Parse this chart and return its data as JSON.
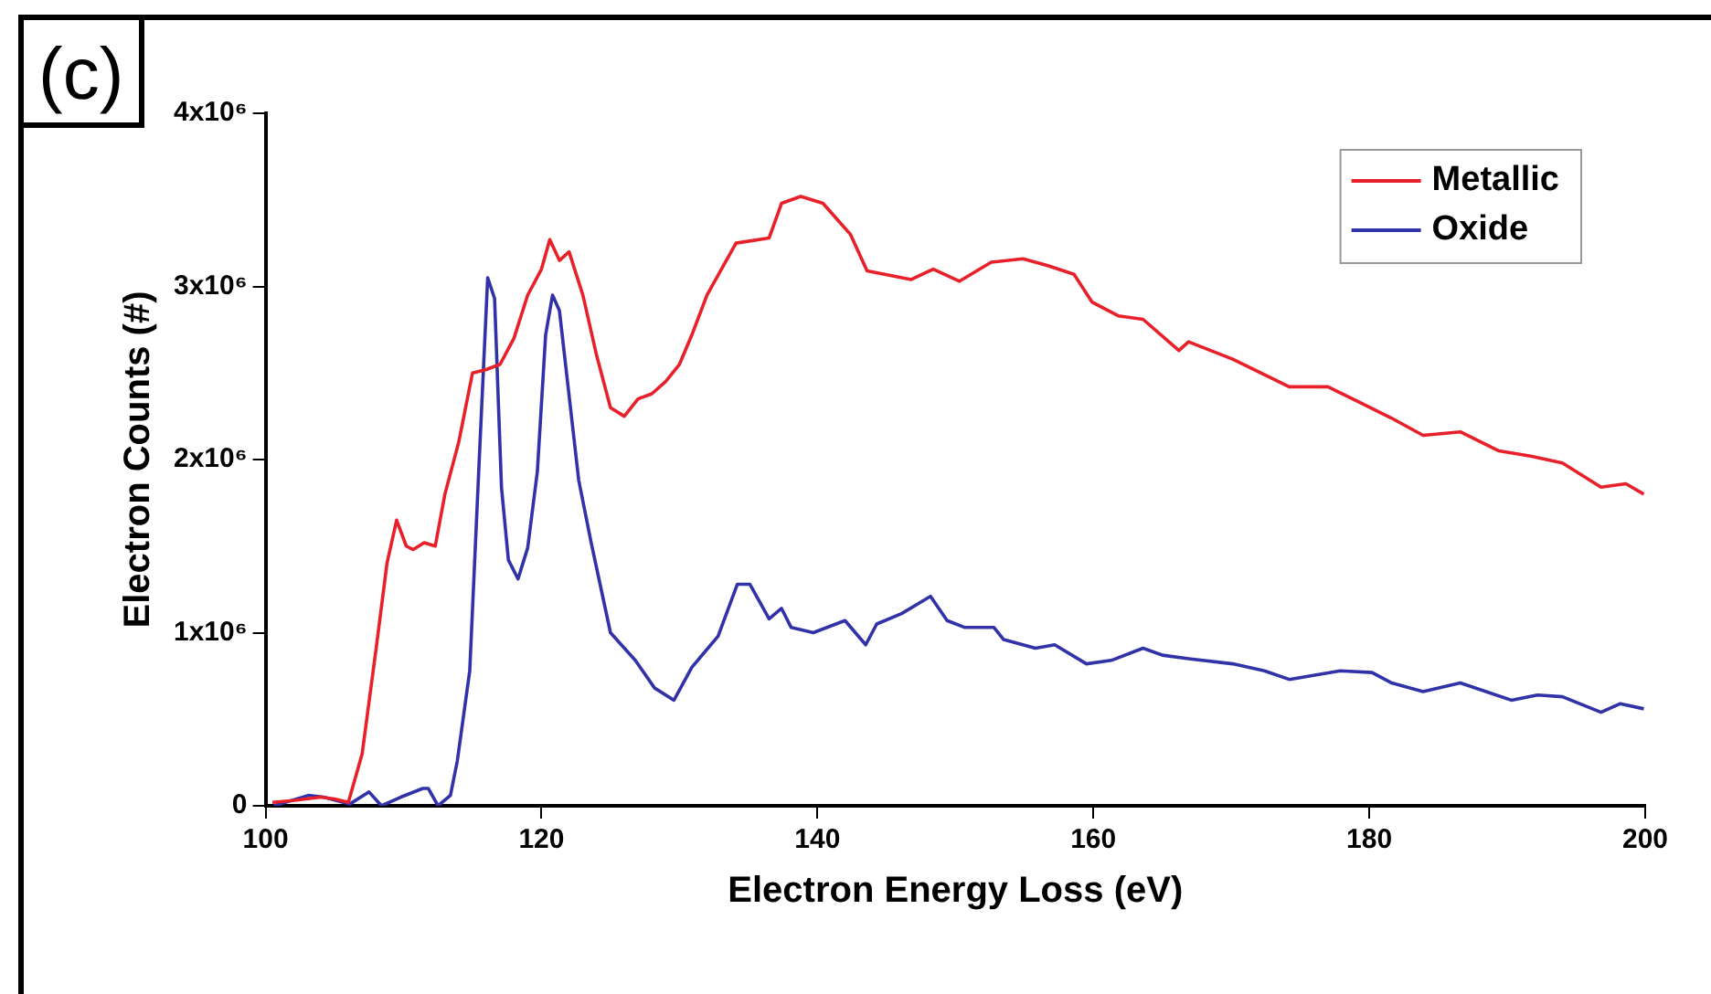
{
  "chart_data": {
    "type": "line",
    "xlabel": "Electron Energy Loss (eV)",
    "ylabel": "Electron Counts (#)",
    "annotations": [
      "(c)"
    ],
    "xlim": [
      100,
      200
    ],
    "xticks": [
      100,
      120,
      140,
      160,
      180,
      200
    ],
    "ylim": [
      0,
      4000000
    ],
    "yticks": [
      {
        "value": 0,
        "label": "0"
      },
      {
        "value": 1000000,
        "label": "1x10⁶"
      },
      {
        "value": 2000000,
        "label": "2x10⁶"
      },
      {
        "value": 3000000,
        "label": "3x10⁶"
      },
      {
        "value": 4000000,
        "label": "4x10⁶"
      }
    ],
    "grid": false,
    "legend": "top right",
    "marker": "none",
    "line_style": "solid",
    "series": [
      {
        "name": "Metallic",
        "color": "#e8202a",
        "x": [
          100.5,
          102,
          104,
          105,
          106,
          107,
          108,
          108.8,
          109.5,
          110.2,
          110.7,
          111.5,
          112.3,
          113,
          114,
          115,
          116,
          117,
          118,
          119,
          120,
          120.6,
          121.3,
          122,
          123,
          124,
          125,
          126,
          127,
          128,
          129,
          130,
          130.9,
          132,
          134.1,
          136.5,
          137.4,
          138.8,
          140.4,
          142.4,
          143.6,
          146.8,
          148.4,
          150.3,
          152.6,
          154.9,
          156.7,
          158.6,
          159.9,
          161.8,
          163.6,
          166.2,
          166.9,
          170.1,
          174.2,
          177,
          179.3,
          181.6,
          183.9,
          186.6,
          189.4,
          191.7,
          194,
          196.8,
          198.6,
          199.9
        ],
        "values": [
          20000,
          30000,
          50000,
          40000,
          20000,
          300000,
          900000,
          1400000,
          1650000,
          1500000,
          1480000,
          1520000,
          1500000,
          1800000,
          2100000,
          2500000,
          2520000,
          2550000,
          2700000,
          2950000,
          3100000,
          3270000,
          3150000,
          3200000,
          2950000,
          2600000,
          2300000,
          2250000,
          2350000,
          2380000,
          2450000,
          2550000,
          2720000,
          2950000,
          3250000,
          3280000,
          3480000,
          3520000,
          3480000,
          3300000,
          3090000,
          3040000,
          3100000,
          3030000,
          3140000,
          3160000,
          3120000,
          3070000,
          2910000,
          2830000,
          2810000,
          2630000,
          2680000,
          2580000,
          2420000,
          2420000,
          2330000,
          2240000,
          2140000,
          2160000,
          2050000,
          2020000,
          1980000,
          1840000,
          1860000,
          1800000
        ]
      },
      {
        "name": "Oxide",
        "color": "#3232a8",
        "x": [
          100.6,
          103.1,
          104.2,
          106.1,
          107.5,
          108.4,
          109.8,
          111.4,
          111.8,
          112.5,
          113.4,
          113.9,
          114.8,
          115.5,
          116.1,
          116.6,
          117.1,
          117.6,
          118.3,
          119,
          119.7,
          120.3,
          120.8,
          121.3,
          122,
          122.7,
          123.6,
          125,
          126.8,
          128.2,
          129.6,
          130.9,
          132.8,
          134.2,
          135.1,
          136.5,
          137.4,
          138.1,
          139.7,
          142,
          143.5,
          144.3,
          146.1,
          148.2,
          149.4,
          150.7,
          152.8,
          153.5,
          155.8,
          157.2,
          159.5,
          161.3,
          163.6,
          165,
          166.9,
          170.1,
          172.4,
          174.2,
          177.9,
          180.2,
          181.6,
          183.9,
          186.6,
          190.3,
          192.2,
          194,
          196.8,
          198.2,
          199.9
        ],
        "values": [
          0,
          60000,
          50000,
          10000,
          80000,
          0,
          50000,
          100000,
          100000,
          0,
          60000,
          260000,
          780000,
          2020000,
          3050000,
          2930000,
          1840000,
          1420000,
          1310000,
          1490000,
          1930000,
          2720000,
          2950000,
          2860000,
          2370000,
          1880000,
          1520000,
          1000000,
          840000,
          680000,
          610000,
          800000,
          980000,
          1280000,
          1280000,
          1080000,
          1140000,
          1030000,
          1000000,
          1070000,
          930000,
          1050000,
          1110000,
          1210000,
          1070000,
          1030000,
          1030000,
          960000,
          910000,
          930000,
          820000,
          840000,
          910000,
          870000,
          850000,
          820000,
          780000,
          730000,
          780000,
          770000,
          710000,
          660000,
          710000,
          610000,
          640000,
          630000,
          540000,
          590000,
          560000
        ]
      }
    ]
  }
}
